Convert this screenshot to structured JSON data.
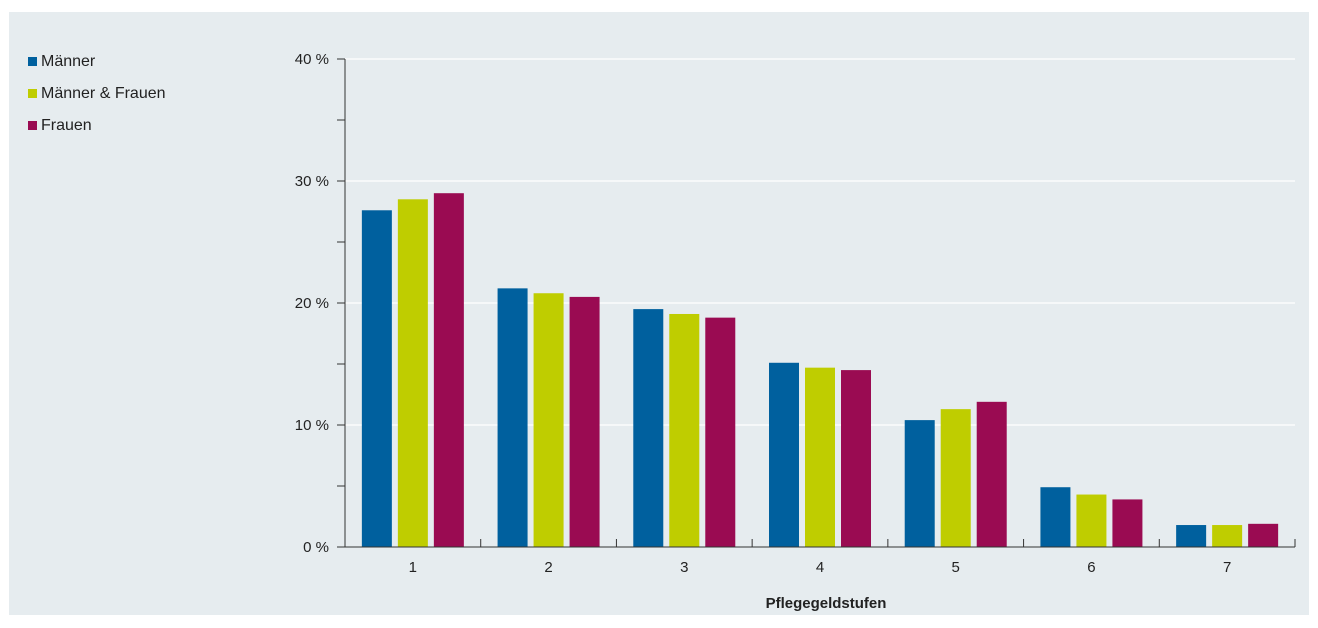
{
  "chart_data": {
    "type": "bar",
    "categories": [
      "1",
      "2",
      "3",
      "4",
      "5",
      "6",
      "7"
    ],
    "series": [
      {
        "name": "Männer",
        "color": "#00609e",
        "values": [
          27.6,
          21.2,
          19.5,
          15.1,
          10.4,
          4.9,
          1.8
        ]
      },
      {
        "name": "Männer & Frauen",
        "color": "#bfcd00",
        "values": [
          28.5,
          20.8,
          19.1,
          14.7,
          11.3,
          4.3,
          1.8
        ]
      },
      {
        "name": "Frauen",
        "color": "#9a0b52",
        "values": [
          29.0,
          20.5,
          18.8,
          14.5,
          11.9,
          3.9,
          1.9
        ]
      }
    ],
    "xlabel": "Pflegegeldstufen",
    "ylabel": "",
    "ylim": [
      0,
      40
    ],
    "yticks": [
      "0 %",
      "10 %",
      "20 %",
      "30 %",
      "40 %"
    ],
    "grid": true,
    "legend_position": "top-left"
  }
}
